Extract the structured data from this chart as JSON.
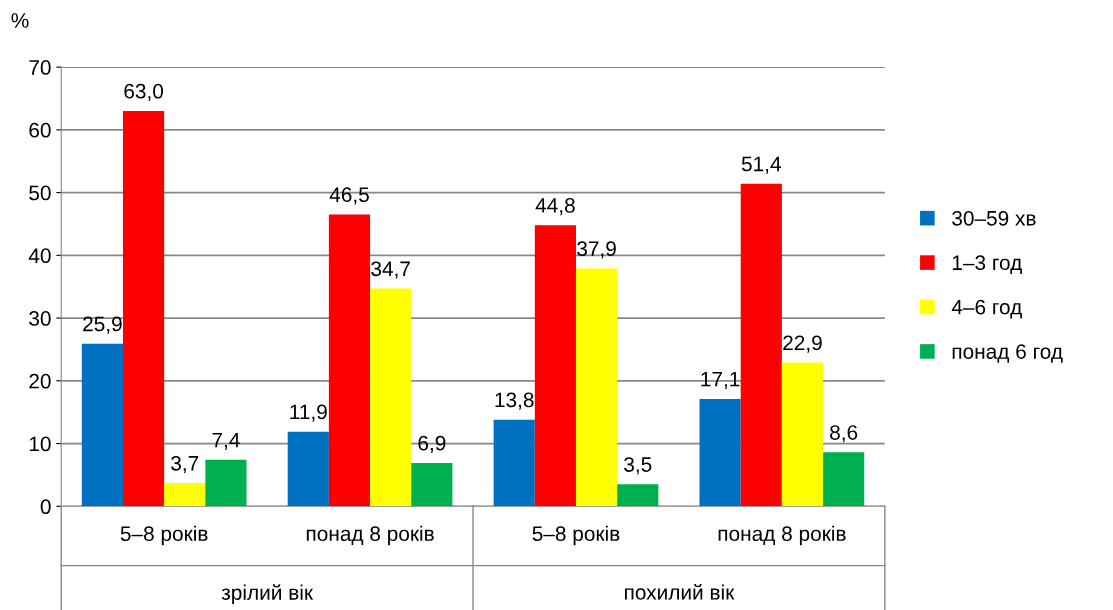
{
  "chart_data": {
    "type": "bar",
    "ylabel": "%",
    "categories": [
      "5–8 років",
      "понад 8 років",
      "5–8 років",
      "понад 8 років"
    ],
    "series": [
      {
        "name": "30–59 хв",
        "color": "#0070c0",
        "values": [
          25.9,
          11.9,
          13.8,
          17.1
        ],
        "value_labels": [
          "25,9",
          "11,9",
          "13,8",
          "17,1"
        ]
      },
      {
        "name": "1–3 год",
        "color": "#ff0000",
        "values": [
          63.0,
          46.5,
          44.8,
          51.4
        ],
        "value_labels": [
          "63,0",
          "46,5",
          "44,8",
          "51,4"
        ]
      },
      {
        "name": "4–6 год",
        "color": "#ffff00",
        "values": [
          3.7,
          34.7,
          37.9,
          22.9
        ],
        "value_labels": [
          "3,7",
          "34,7",
          "37,9",
          "22,9"
        ]
      },
      {
        "name": "понад 6 год",
        "color": "#00b050",
        "values": [
          7.4,
          6.9,
          3.5,
          8.6
        ],
        "value_labels": [
          "7,4",
          "6,9",
          "3,5",
          "8,6"
        ]
      }
    ],
    "annotations": [
      "зрілий вік",
      "похилий вік"
    ],
    "ylim": [
      0,
      70
    ],
    "yticks": [
      0,
      10,
      20,
      30,
      40,
      50,
      60,
      70
    ],
    "grid": "y",
    "legend": "right"
  }
}
